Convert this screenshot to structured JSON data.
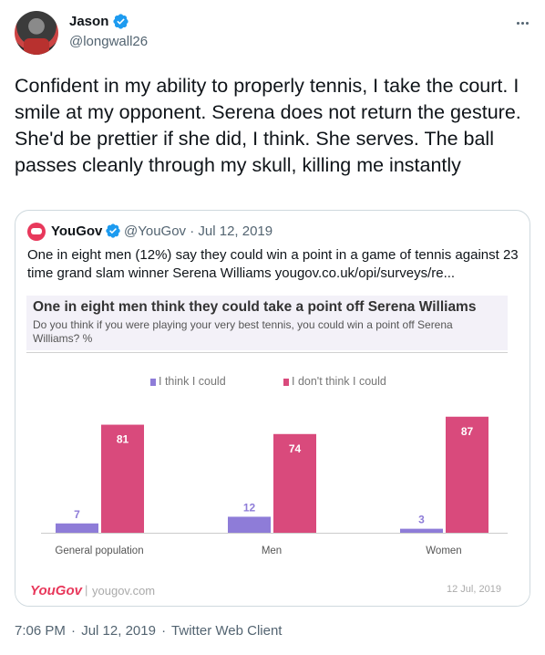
{
  "author": {
    "name": "Jason",
    "handle": "@longwall26"
  },
  "tweet_text": "Confident in my ability to properly tennis, I take the court. I smile at my opponent. Serena does not return the gesture. She'd be prettier if she did, I think. She serves. The ball passes cleanly through my skull, killing me instantly",
  "quoted": {
    "name": "YouGov",
    "meta": "@YouGov · Jul 12, 2019",
    "text": "One in eight men (12%) say they could win a point in a game of tennis against 23 time grand slam winner Serena Williams yougov.co.uk/opi/surveys/re..."
  },
  "chart_footer": {
    "brand": "YouGov",
    "separator": "|",
    "site": "yougov.com",
    "date": "12 Jul, 2019"
  },
  "timestamp": {
    "time": "7:06 PM",
    "date": "Jul 12, 2019",
    "client": "Twitter Web Client",
    "sep": "·"
  },
  "colors": {
    "accent": "#1d9bf0",
    "series_could": "#8e7cd8",
    "series_couldnt": "#d94a7c",
    "brand": "#e8385b"
  },
  "icons": {
    "verified": "verified-badge-icon",
    "more": "more-dots-icon"
  },
  "chart_data": {
    "type": "bar",
    "title": "One in eight men think they could take a point off Serena Williams",
    "subtitle": "Do you think if you were playing your very best tennis, you could win a point off Serena Williams? %",
    "categories": [
      "General population",
      "Men",
      "Women"
    ],
    "series": [
      {
        "name": "I think I could",
        "values": [
          7,
          12,
          3
        ],
        "color": "#8e7cd8"
      },
      {
        "name": "I don't think I could",
        "values": [
          81,
          74,
          87
        ],
        "color": "#d94a7c"
      }
    ],
    "ylim": [
      0,
      100
    ],
    "legend": "top",
    "grid": false
  }
}
